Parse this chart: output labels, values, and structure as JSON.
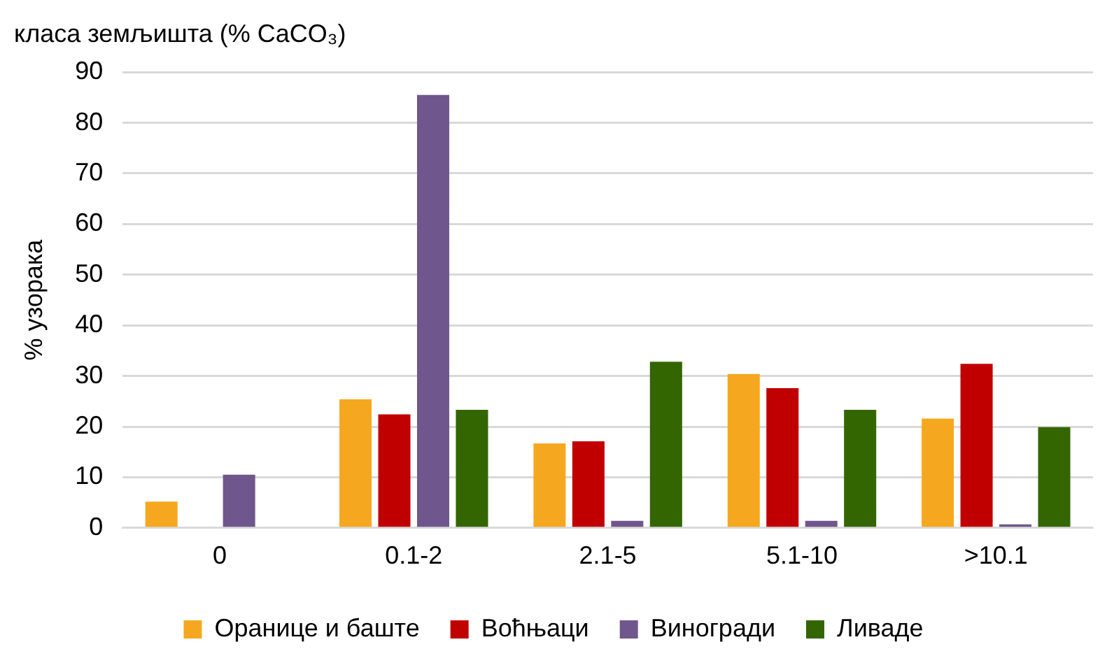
{
  "chart_data": {
    "type": "bar",
    "title": "класа земљишта (% CaCO₃)",
    "ylabel": "% узорака",
    "categories": [
      "0",
      "0.1-2",
      "2.1-5",
      "5.1-10",
      ">10.1"
    ],
    "series": [
      {
        "name": "Оранице и баште",
        "color": "#f5a81f",
        "values": [
          5.2,
          25.4,
          16.7,
          30.4,
          21.6
        ]
      },
      {
        "name": "Воћњаци",
        "color": "#c00000",
        "values": [
          0,
          22.4,
          17.1,
          27.6,
          32.4
        ]
      },
      {
        "name": "Виногради",
        "color": "#6f578d",
        "values": [
          10.5,
          85.5,
          1.4,
          1.4,
          0.7
        ]
      },
      {
        "name": "Ливаде",
        "color": "#336600",
        "values": [
          0,
          23.3,
          32.8,
          23.3,
          19.9
        ]
      }
    ],
    "ylim": [
      0,
      90
    ],
    "yticks": [
      0,
      10,
      20,
      30,
      40,
      50,
      60,
      70,
      80,
      90
    ],
    "grid": "y",
    "legend": "bottom"
  }
}
